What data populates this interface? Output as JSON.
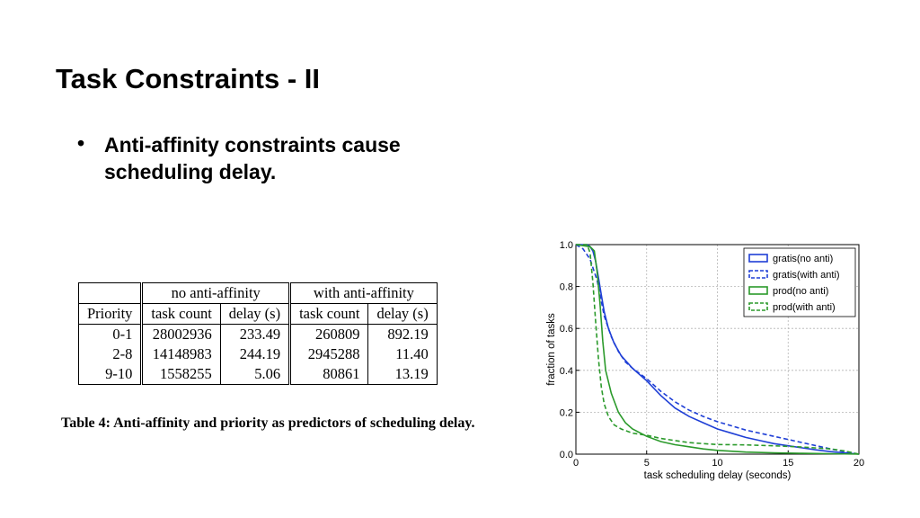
{
  "slide": {
    "title": "Task Constraints - II",
    "bullets": [
      "Anti-affinity constraints cause scheduling delay."
    ]
  },
  "table": {
    "group_headers": [
      "no anti-affinity",
      "with anti-affinity"
    ],
    "col_headers": [
      "Priority",
      "task count",
      "delay (s)",
      "task count",
      "delay (s)"
    ],
    "rows": [
      [
        "0-1",
        "28002936",
        "233.49",
        "260809",
        "892.19"
      ],
      [
        "2-8",
        "14148983",
        "244.19",
        "2945288",
        "11.40"
      ],
      [
        "9-10",
        "1558255",
        "5.06",
        "80861",
        "13.19"
      ]
    ],
    "caption": "Table 4: Anti-affinity and priority as predictors of scheduling delay."
  },
  "chart_data": {
    "type": "line",
    "title": "",
    "xlabel": "task scheduling delay (seconds)",
    "ylabel": "fraction of tasks",
    "xlim": [
      0,
      20
    ],
    "ylim": [
      0,
      1.0
    ],
    "xticks": [
      "0",
      "5",
      "10",
      "15",
      "20"
    ],
    "yticks": [
      "0.0",
      "0.2",
      "0.4",
      "0.6",
      "0.8",
      "1.0"
    ],
    "grid": true,
    "legend_position": "top-right",
    "series": [
      {
        "name": "gratis(no anti)",
        "color": "#1f3fd6",
        "dash": false,
        "x": [
          0,
          0.8,
          1.0,
          1.2,
          1.4,
          1.6,
          1.8,
          2.0,
          2.3,
          2.7,
          3.2,
          4.0,
          5.0,
          6.0,
          7.0,
          8.0,
          9.0,
          10.0,
          11.0,
          12.0,
          13.0,
          14.0,
          15.0,
          16.0,
          17.0,
          18.0,
          19.0,
          20.0
        ],
        "y": [
          1.0,
          1.0,
          0.99,
          0.97,
          0.92,
          0.84,
          0.76,
          0.68,
          0.6,
          0.53,
          0.47,
          0.41,
          0.35,
          0.28,
          0.22,
          0.18,
          0.15,
          0.12,
          0.1,
          0.08,
          0.065,
          0.05,
          0.04,
          0.03,
          0.02,
          0.012,
          0.006,
          0.0
        ]
      },
      {
        "name": "gratis(with anti)",
        "color": "#1f3fd6",
        "dash": true,
        "x": [
          0,
          0.5,
          1.0,
          1.5,
          2.0,
          2.5,
          3.0,
          3.5,
          4.0,
          5.0,
          6.0,
          7.0,
          8.0,
          9.0,
          10.0,
          11.0,
          12.0,
          13.0,
          14.0,
          15.0,
          16.0,
          17.0,
          18.0,
          19.0,
          20.0
        ],
        "y": [
          1.0,
          0.98,
          0.93,
          0.83,
          0.66,
          0.56,
          0.49,
          0.44,
          0.41,
          0.36,
          0.3,
          0.25,
          0.21,
          0.18,
          0.155,
          0.135,
          0.115,
          0.1,
          0.085,
          0.07,
          0.055,
          0.04,
          0.025,
          0.012,
          0.0
        ]
      },
      {
        "name": "prod(no anti)",
        "color": "#2b9a2b",
        "dash": false,
        "x": [
          0,
          1.0,
          1.3,
          1.5,
          1.7,
          1.9,
          2.1,
          2.5,
          3.0,
          3.5,
          4.0,
          5.0,
          6.0,
          7.0,
          8.0,
          9.0,
          10.0,
          12.0,
          14.0,
          16.0,
          18.0,
          20.0
        ],
        "y": [
          1.0,
          0.99,
          0.97,
          0.87,
          0.72,
          0.54,
          0.4,
          0.29,
          0.2,
          0.15,
          0.12,
          0.085,
          0.06,
          0.045,
          0.035,
          0.025,
          0.018,
          0.01,
          0.006,
          0.004,
          0.002,
          0.0
        ]
      },
      {
        "name": "prod(with anti)",
        "color": "#2b9a2b",
        "dash": true,
        "x": [
          0,
          0.8,
          1.0,
          1.2,
          1.4,
          1.6,
          1.8,
          2.0,
          2.3,
          2.7,
          3.2,
          4.0,
          5.0,
          6.0,
          7.0,
          8.0,
          9.0,
          10.0,
          12.0,
          14.0,
          16.0,
          18.0,
          19.0,
          20.0
        ],
        "y": [
          1.0,
          1.0,
          0.96,
          0.82,
          0.63,
          0.45,
          0.32,
          0.24,
          0.18,
          0.14,
          0.12,
          0.1,
          0.09,
          0.075,
          0.065,
          0.055,
          0.05,
          0.046,
          0.044,
          0.04,
          0.034,
          0.025,
          0.015,
          0.0
        ]
      }
    ]
  }
}
